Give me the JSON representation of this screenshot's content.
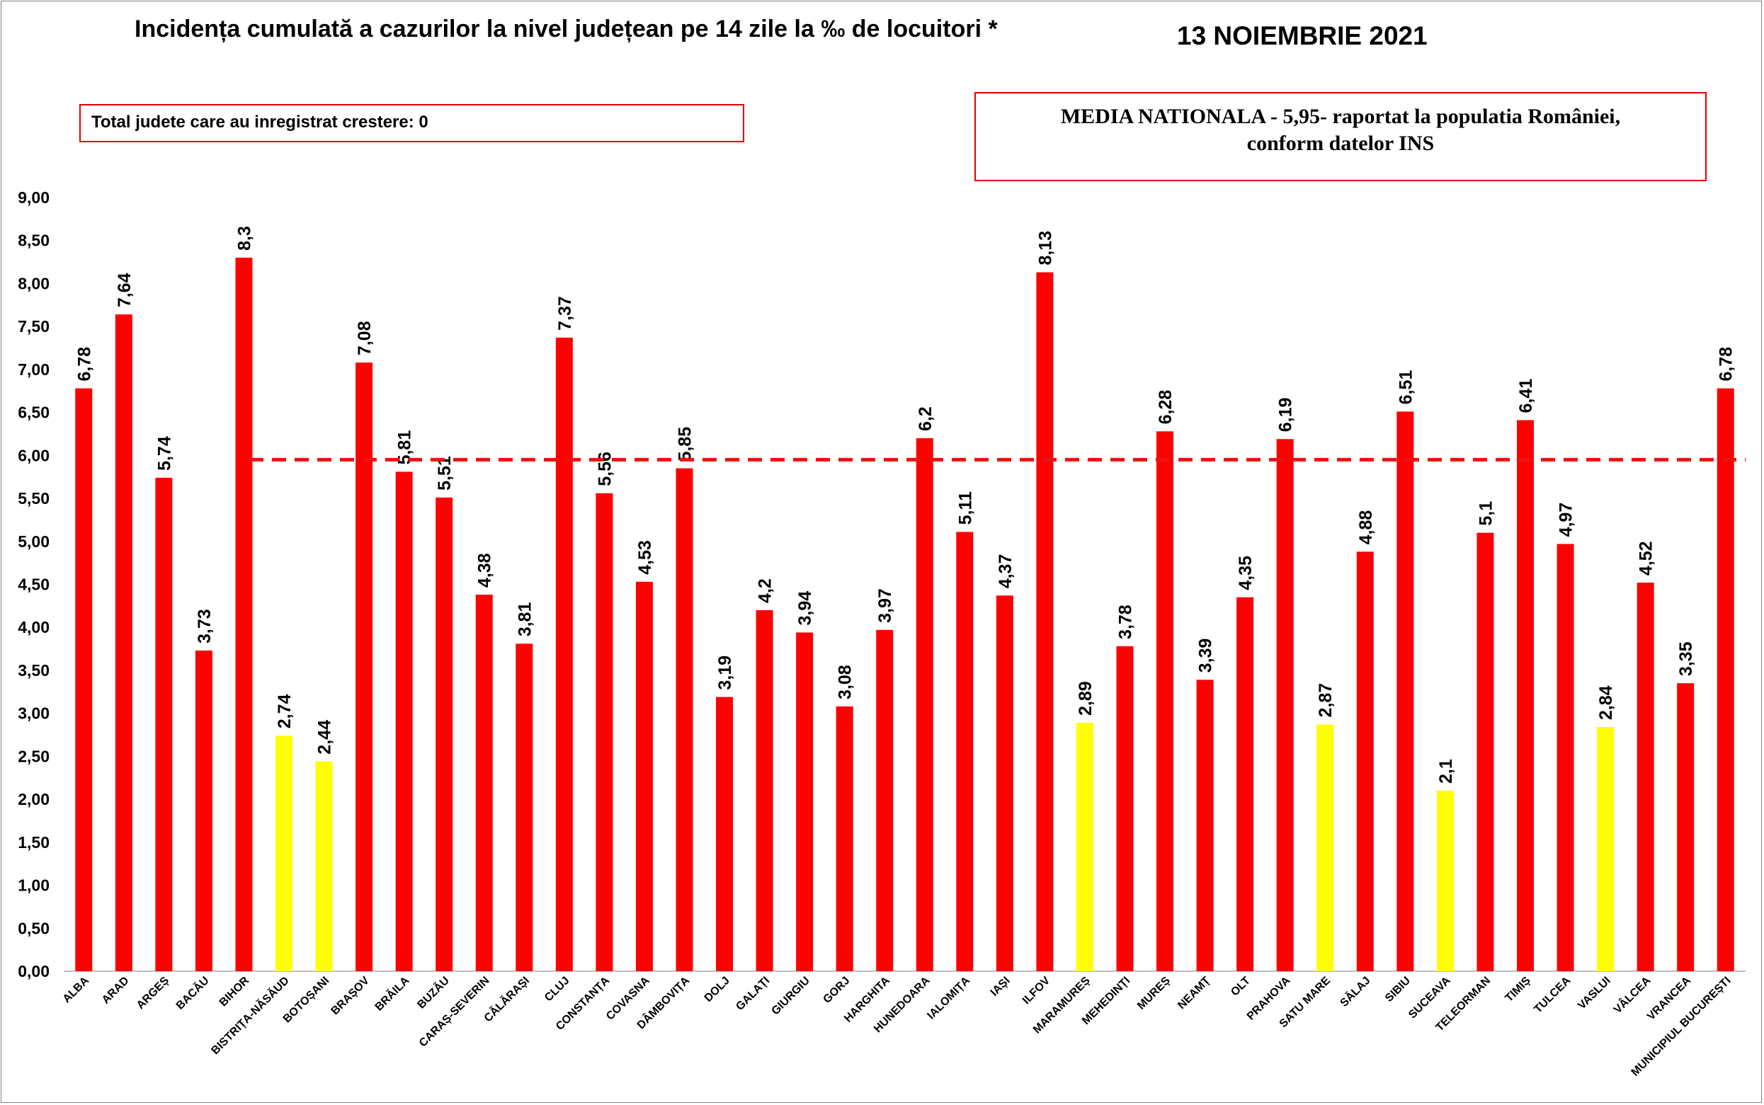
{
  "header": {
    "title": "Incidența cumulată a cazurilor la nivel județean pe 14 zile la ‰ de locuitori *",
    "date": "13 NOIEMBRIE 2021"
  },
  "info_boxes": {
    "total_increase": "Total judete care au inregistrat crestere: 0",
    "national_line1": "MEDIA NATIONALA - 5,95-  raportat la populatia României,",
    "national_line2": "conform datelor INS"
  },
  "colors": {
    "bar_red": "#ff0000",
    "bar_yellow": "#ffff00",
    "average_line": "#ee1111",
    "box_border": "#e00000"
  },
  "chart_data": {
    "type": "bar",
    "ylim": [
      0,
      9
    ],
    "ytick_step": 0.5,
    "yticks": [
      "0,00",
      "0,50",
      "1,00",
      "1,50",
      "2,00",
      "2,50",
      "3,00",
      "3,50",
      "4,00",
      "4,50",
      "5,00",
      "5,50",
      "6,00",
      "6,50",
      "7,00",
      "7,50",
      "8,00",
      "8,50",
      "9,00"
    ],
    "average": 5.95,
    "categories": [
      "ALBA",
      "ARAD",
      "ARGEȘ",
      "BACĂU",
      "BIHOR",
      "BISTRIȚA-NĂSĂUD",
      "BOTOȘANI",
      "BRAȘOV",
      "BRĂILA",
      "BUZĂU",
      "CARAȘ-SEVERIN",
      "CĂLĂRAȘI",
      "CLUJ",
      "CONSTANȚA",
      "COVASNA",
      "DÂMBOVIȚA",
      "DOLJ",
      "GALAȚI",
      "GIURGIU",
      "GORJ",
      "HARGHITA",
      "HUNEDOARA",
      "IALOMIȚA",
      "IAȘI",
      "ILFOV",
      "MARAMUREȘ",
      "MEHEDINȚI",
      "MUREȘ",
      "NEAMȚ",
      "OLT",
      "PRAHOVA",
      "SATU MARE",
      "SĂLAJ",
      "SIBIU",
      "SUCEAVA",
      "TELEORMAN",
      "TIMIȘ",
      "TULCEA",
      "VASLUI",
      "VÂLCEA",
      "VRANCEA",
      "MUNICIPIUL BUCUREȘTI"
    ],
    "values": [
      6.78,
      7.64,
      5.74,
      3.73,
      8.3,
      2.74,
      2.44,
      7.08,
      5.81,
      5.51,
      4.38,
      3.81,
      7.37,
      5.56,
      4.53,
      5.85,
      3.19,
      4.2,
      3.94,
      3.08,
      3.97,
      6.2,
      5.11,
      4.37,
      8.13,
      2.89,
      3.78,
      6.28,
      3.39,
      4.35,
      6.19,
      2.87,
      4.88,
      6.51,
      2.1,
      5.1,
      6.41,
      4.97,
      2.84,
      4.52,
      3.35,
      6.78
    ],
    "labels": [
      "6,78",
      "7,64",
      "5,74",
      "3,73",
      "8,3",
      "2,74",
      "2,44",
      "7,08",
      "5,81",
      "5,51",
      "4,38",
      "3,81",
      "7,37",
      "5,56",
      "4,53",
      "5,85",
      "3,19",
      "4,2",
      "3,94",
      "3,08",
      "3,97",
      "6,2",
      "5,11",
      "4,37",
      "8,13",
      "2,89",
      "3,78",
      "6,28",
      "3,39",
      "4,35",
      "6,19",
      "2,87",
      "4,88",
      "6,51",
      "2,1",
      "5,1",
      "6,41",
      "4,97",
      "2,84",
      "4,52",
      "3,35",
      "6,78"
    ],
    "highlight_yellow": [
      "BISTRIȚA-NĂSĂUD",
      "BOTOȘANI",
      "MARAMUREȘ",
      "SATU MARE",
      "SUCEAVA",
      "VASLUI"
    ]
  }
}
